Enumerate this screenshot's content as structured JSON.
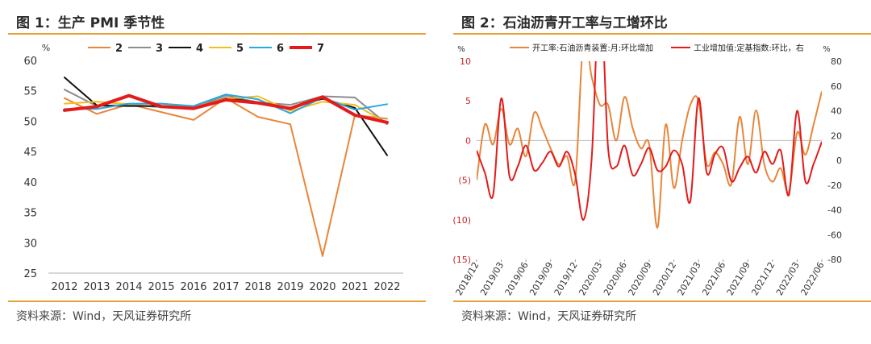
{
  "panel1": {
    "title": "图 1：生产 PMI 季节性",
    "source": "资料来源：Wind，天风证券研究所"
  },
  "panel2": {
    "title": "图 2：石油沥青开工率与工增环比",
    "source": "资料来源：Wind，天风证券研究所"
  },
  "colors": {
    "accent_rule": "#e8a13a",
    "s2": "#e8863b",
    "s3": "#8c8c8c",
    "s4": "#111111",
    "s5": "#f2bf1f",
    "s6": "#2aa8e0",
    "s7": "#e31b1b",
    "orange_line": "#e8863b",
    "red_line": "#e31b1b"
  },
  "chart_data": [
    {
      "type": "line",
      "title": "生产 PMI 季节性",
      "yunit": "%",
      "ylim": [
        25,
        60
      ],
      "yticks": [
        25,
        30,
        35,
        40,
        45,
        50,
        55,
        60
      ],
      "categories": [
        "2012",
        "2013",
        "2014",
        "2015",
        "2016",
        "2017",
        "2018",
        "2019",
        "2020",
        "2021",
        "2022"
      ],
      "legend_position": "top",
      "series": [
        {
          "name": "2",
          "color": "#e8863b",
          "width": 2,
          "values": [
            53.8,
            51.2,
            52.8,
            51.5,
            50.2,
            53.8,
            50.7,
            49.5,
            27.8,
            51.0,
            50.4
          ]
        },
        {
          "name": "3",
          "color": "#8c8c8c",
          "width": 2,
          "values": [
            55.2,
            52.5,
            52.7,
            52.3,
            52.3,
            54.2,
            53.1,
            52.7,
            54.1,
            53.9,
            49.5
          ]
        },
        {
          "name": "4",
          "color": "#111111",
          "width": 2,
          "values": [
            57.2,
            52.6,
            52.5,
            52.5,
            52.2,
            53.8,
            53.1,
            52.1,
            53.7,
            52.2,
            44.4
          ]
        },
        {
          "name": "5",
          "color": "#f2bf1f",
          "width": 2,
          "values": [
            52.9,
            53.2,
            52.8,
            52.9,
            52.3,
            53.7,
            54.1,
            51.7,
            53.2,
            52.7,
            49.7
          ]
        },
        {
          "name": "6",
          "color": "#2aa8e0",
          "width": 2,
          "values": [
            52.0,
            52.0,
            52.9,
            52.9,
            52.5,
            54.4,
            53.6,
            51.3,
            53.9,
            51.9,
            52.8
          ]
        },
        {
          "name": "7",
          "color": "#e31b1b",
          "width": 4,
          "values": [
            51.8,
            52.4,
            54.2,
            52.4,
            52.1,
            53.5,
            53.0,
            52.1,
            54.0,
            51.0,
            49.8
          ]
        }
      ]
    },
    {
      "type": "line",
      "title": "石油沥青开工率与工增环比",
      "y_left": {
        "unit": "%",
        "ylim": [
          -15,
          10
        ],
        "ticks": [
          10,
          5,
          0,
          -5,
          -10,
          -15
        ],
        "tick_labels": [
          "10",
          "5",
          "0",
          "(5)",
          "(10)",
          "(15)"
        ]
      },
      "y_right": {
        "unit": "%",
        "ylim": [
          -80,
          80
        ],
        "ticks": [
          80,
          60,
          40,
          20,
          0,
          -20,
          -40,
          -60,
          -80
        ],
        "tick_labels": [
          "80",
          "60",
          "40",
          "20",
          "0",
          "-20",
          "-40",
          "-60",
          "-80"
        ]
      },
      "x_start": "2018-12",
      "x_labels": [
        "2018/12",
        "2019/03",
        "2019/06",
        "2019/09",
        "2019/12",
        "2020/03",
        "2020/06",
        "2020/09",
        "2020/12",
        "2021/03",
        "2021/06",
        "2021/09",
        "2021/12",
        "2022/03",
        "2022/06"
      ],
      "legend_position": "top",
      "series": [
        {
          "name": "开工率:石油沥青装置:月:环比增加",
          "axis": "left",
          "color": "#e8863b",
          "width": 2,
          "values": [
            -5,
            2,
            -0.5,
            4,
            -0.5,
            1.5,
            -2,
            3.5,
            1.5,
            -1,
            -3,
            -2,
            -5,
            13,
            8,
            4.5,
            4.5,
            0,
            5.5,
            1.5,
            -1,
            -0.5,
            -11,
            2,
            -6,
            0,
            4.5,
            5,
            -3,
            -1.5,
            -3,
            -5.5,
            3,
            -3,
            3.8,
            -3,
            -5.2,
            -3.5,
            -6.5,
            1,
            -1.8,
            2,
            6.2
          ]
        },
        {
          "name": "工业增加值:定基指数:环比，右",
          "axis": "right",
          "color": "#e31b1b",
          "width": 2,
          "values": [
            8,
            -10,
            -28,
            50,
            -13,
            -5,
            12,
            -8,
            -2,
            7,
            -5,
            7,
            -12,
            -48,
            2,
            140,
            10,
            -5,
            12,
            -12,
            -3,
            10,
            -8,
            -5,
            8,
            -3,
            -33,
            50,
            -10,
            5,
            10,
            -17,
            -6,
            3,
            -10,
            7,
            -3,
            8,
            -28,
            40,
            -17,
            -3,
            15
          ]
        }
      ]
    }
  ]
}
